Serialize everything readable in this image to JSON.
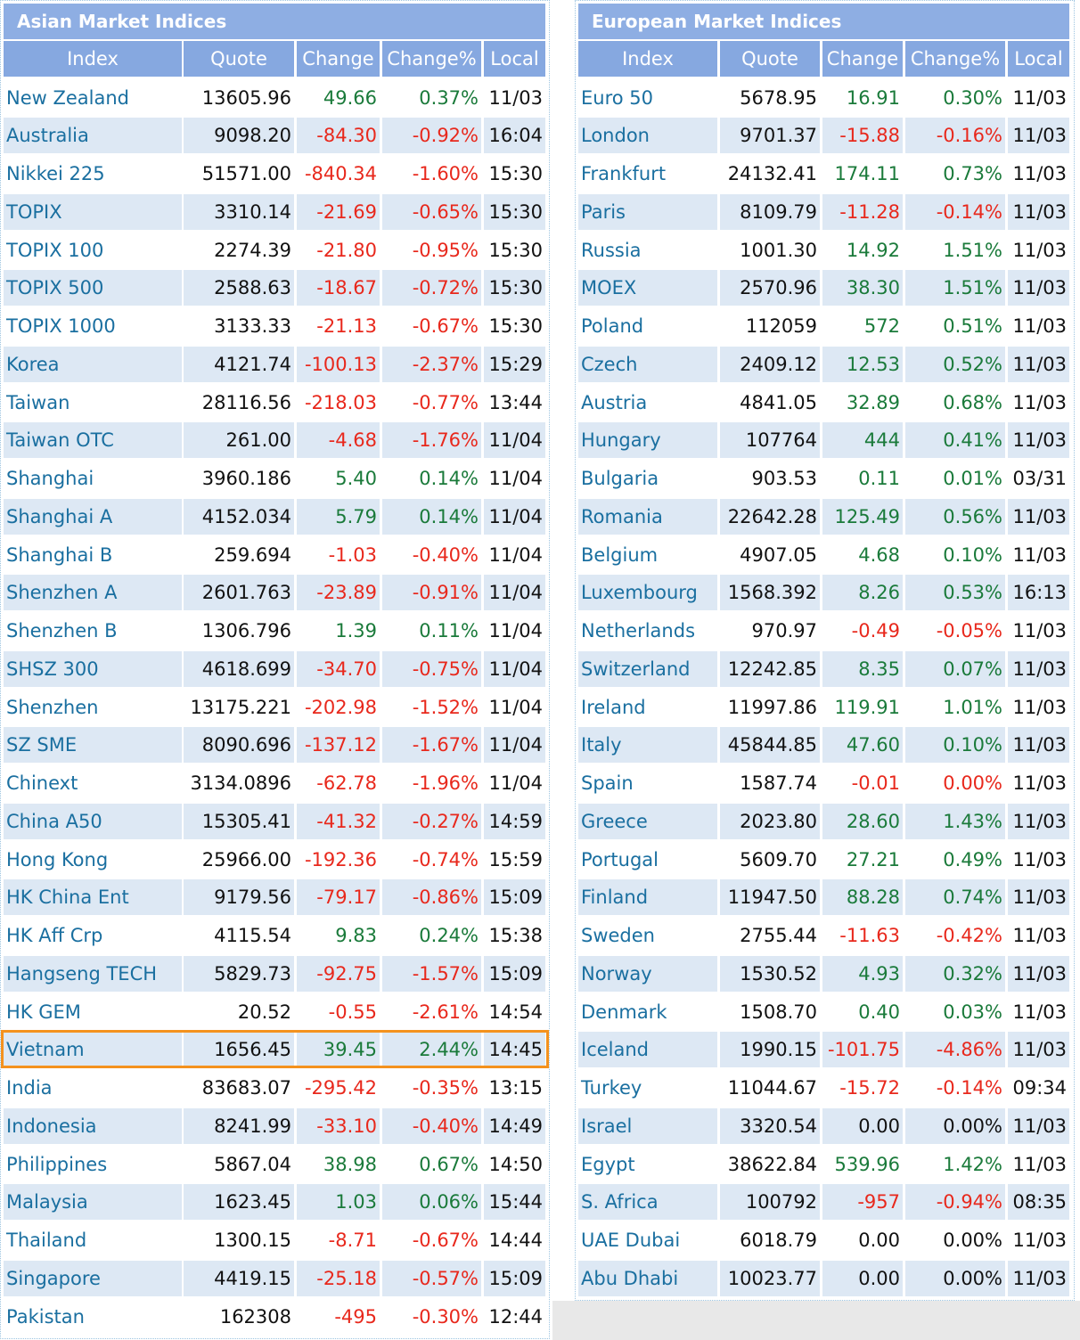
{
  "asian": {
    "title": "Asian Market Indices",
    "columns": [
      "Index",
      "Quote",
      "Change",
      "Change%",
      "Local"
    ],
    "rows": [
      [
        "New Zealand",
        "13605.96",
        "49.66",
        "0.37%",
        "11/03"
      ],
      [
        "Australia",
        "9098.20",
        "-84.30",
        "-0.92%",
        "16:04"
      ],
      [
        "Nikkei 225",
        "51571.00",
        "-840.34",
        "-1.60%",
        "15:30"
      ],
      [
        "TOPIX",
        "3310.14",
        "-21.69",
        "-0.65%",
        "15:30"
      ],
      [
        "TOPIX 100",
        "2274.39",
        "-21.80",
        "-0.95%",
        "15:30"
      ],
      [
        "TOPIX 500",
        "2588.63",
        "-18.67",
        "-0.72%",
        "15:30"
      ],
      [
        "TOPIX 1000",
        "3133.33",
        "-21.13",
        "-0.67%",
        "15:30"
      ],
      [
        "Korea",
        "4121.74",
        "-100.13",
        "-2.37%",
        "15:29"
      ],
      [
        "Taiwan",
        "28116.56",
        "-218.03",
        "-0.77%",
        "13:44"
      ],
      [
        "Taiwan OTC",
        "261.00",
        "-4.68",
        "-1.76%",
        "11/04"
      ],
      [
        "Shanghai",
        "3960.186",
        "5.40",
        "0.14%",
        "11/04"
      ],
      [
        "Shanghai A",
        "4152.034",
        "5.79",
        "0.14%",
        "11/04"
      ],
      [
        "Shanghai B",
        "259.694",
        "-1.03",
        "-0.40%",
        "11/04"
      ],
      [
        "Shenzhen A",
        "2601.763",
        "-23.89",
        "-0.91%",
        "11/04"
      ],
      [
        "Shenzhen B",
        "1306.796",
        "1.39",
        "0.11%",
        "11/04"
      ],
      [
        "SHSZ 300",
        "4618.699",
        "-34.70",
        "-0.75%",
        "11/04"
      ],
      [
        "Shenzhen",
        "13175.221",
        "-202.98",
        "-1.52%",
        "11/04"
      ],
      [
        "SZ SME",
        "8090.696",
        "-137.12",
        "-1.67%",
        "11/04"
      ],
      [
        "Chinext",
        "3134.0896",
        "-62.78",
        "-1.96%",
        "11/04"
      ],
      [
        "China A50",
        "15305.41",
        "-41.32",
        "-0.27%",
        "14:59"
      ],
      [
        "Hong Kong",
        "25966.00",
        "-192.36",
        "-0.74%",
        "15:59"
      ],
      [
        "HK China Ent",
        "9179.56",
        "-79.17",
        "-0.86%",
        "15:09"
      ],
      [
        "HK Aff Crp",
        "4115.54",
        "9.83",
        "0.24%",
        "15:38"
      ],
      [
        "Hangseng TECH",
        "5829.73",
        "-92.75",
        "-1.57%",
        "15:09"
      ],
      [
        "HK GEM",
        "20.52",
        "-0.55",
        "-2.61%",
        "14:54"
      ],
      [
        "Vietnam",
        "1656.45",
        "39.45",
        "2.44%",
        "14:45"
      ],
      [
        "India",
        "83683.07",
        "-295.42",
        "-0.35%",
        "13:15"
      ],
      [
        "Indonesia",
        "8241.99",
        "-33.10",
        "-0.40%",
        "14:49"
      ],
      [
        "Philippines",
        "5867.04",
        "38.98",
        "0.67%",
        "14:50"
      ],
      [
        "Malaysia",
        "1623.45",
        "1.03",
        "0.06%",
        "15:44"
      ],
      [
        "Thailand",
        "1300.15",
        "-8.71",
        "-0.67%",
        "14:44"
      ],
      [
        "Singapore",
        "4419.15",
        "-25.18",
        "-0.57%",
        "15:09"
      ],
      [
        "Pakistan",
        "162308",
        "-495",
        "-0.30%",
        "12:44"
      ]
    ]
  },
  "european": {
    "title": "European Market Indices",
    "columns": [
      "Index",
      "Quote",
      "Change",
      "Change%",
      "Local"
    ],
    "rows": [
      [
        "Euro 50",
        "5678.95",
        "16.91",
        "0.30%",
        "11/03"
      ],
      [
        "London",
        "9701.37",
        "-15.88",
        "-0.16%",
        "11/03"
      ],
      [
        "Frankfurt",
        "24132.41",
        "174.11",
        "0.73%",
        "11/03"
      ],
      [
        "Paris",
        "8109.79",
        "-11.28",
        "-0.14%",
        "11/03"
      ],
      [
        "Russia",
        "1001.30",
        "14.92",
        "1.51%",
        "11/03"
      ],
      [
        "MOEX",
        "2570.96",
        "38.30",
        "1.51%",
        "11/03"
      ],
      [
        "Poland",
        "112059",
        "572",
        "0.51%",
        "11/03"
      ],
      [
        "Czech",
        "2409.12",
        "12.53",
        "0.52%",
        "11/03"
      ],
      [
        "Austria",
        "4841.05",
        "32.89",
        "0.68%",
        "11/03"
      ],
      [
        "Hungary",
        "107764",
        "444",
        "0.41%",
        "11/03"
      ],
      [
        "Bulgaria",
        "903.53",
        "0.11",
        "0.01%",
        "03/31"
      ],
      [
        "Romania",
        "22642.28",
        "125.49",
        "0.56%",
        "11/03"
      ],
      [
        "Belgium",
        "4907.05",
        "4.68",
        "0.10%",
        "11/03"
      ],
      [
        "Luxembourg",
        "1568.392",
        "8.26",
        "0.53%",
        "16:13"
      ],
      [
        "Netherlands",
        "970.97",
        "-0.49",
        "-0.05%",
        "11/03"
      ],
      [
        "Switzerland",
        "12242.85",
        "8.35",
        "0.07%",
        "11/03"
      ],
      [
        "Ireland",
        "11997.86",
        "119.91",
        "1.01%",
        "11/03"
      ],
      [
        "Italy",
        "45844.85",
        "47.60",
        "0.10%",
        "11/03"
      ],
      [
        "Spain",
        "1587.74",
        "-0.01",
        "0.00%",
        "11/03"
      ],
      [
        "Greece",
        "2023.80",
        "28.60",
        "1.43%",
        "11/03"
      ],
      [
        "Portugal",
        "5609.70",
        "27.21",
        "0.49%",
        "11/03"
      ],
      [
        "Finland",
        "11947.50",
        "88.28",
        "0.74%",
        "11/03"
      ],
      [
        "Sweden",
        "2755.44",
        "-11.63",
        "-0.42%",
        "11/03"
      ],
      [
        "Norway",
        "1530.52",
        "4.93",
        "0.32%",
        "11/03"
      ],
      [
        "Denmark",
        "1508.70",
        "0.40",
        "0.03%",
        "11/03"
      ],
      [
        "Iceland",
        "1990.15",
        "-101.75",
        "-4.86%",
        "11/03"
      ],
      [
        "Turkey",
        "11044.67",
        "-15.72",
        "-0.14%",
        "09:34"
      ],
      [
        "Israel",
        "3320.54",
        "0.00",
        "0.00%",
        "11/03"
      ],
      [
        "Egypt",
        "38622.84",
        "539.96",
        "1.42%",
        "11/03"
      ],
      [
        "S. Africa",
        "100792",
        "-957",
        "-0.94%",
        "08:35"
      ],
      [
        "UAE Dubai",
        "6018.79",
        "0.00",
        "0.00%",
        "11/03"
      ],
      [
        "Abu Dhabi",
        "10023.77",
        "0.00",
        "0.00%",
        "11/03"
      ]
    ]
  }
}
